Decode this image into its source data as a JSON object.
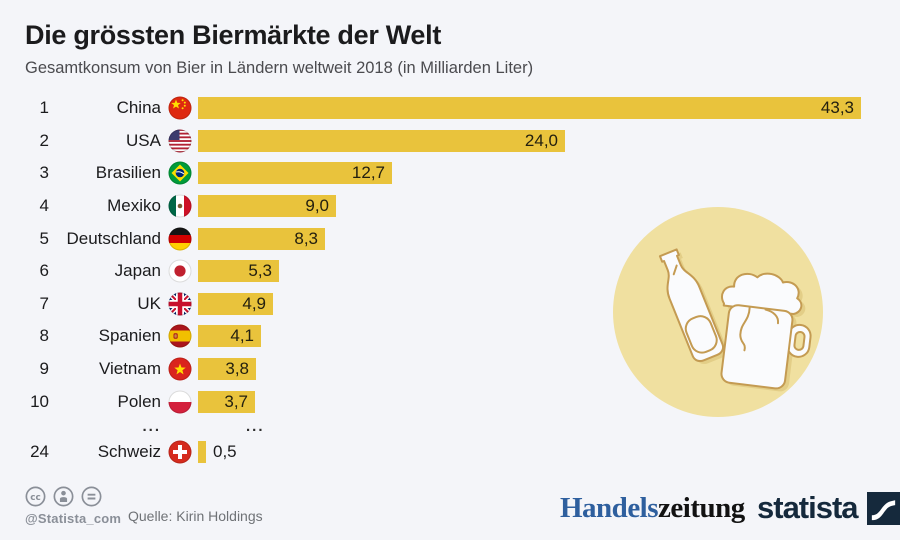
{
  "title": "Die grössten Biermärkte der Welt",
  "subtitle": "Gesamtkonsum von Bier in Ländern weltweit 2018 (in Milliarden Liter)",
  "colors": {
    "background": "#F4F5F9",
    "bar": "#E9C33C",
    "illustration_circle": "#F0E0A0",
    "illustration_outline": "#C49B52",
    "handelszeitung_blue": "#2E5F9E",
    "statista_navy": "#15293C"
  },
  "chart_data": {
    "type": "bar",
    "orientation": "horizontal",
    "title": "Die grössten Biermärkte der Welt",
    "subtitle": "Gesamtkonsum von Bier in Ländern weltweit 2018 (in Milliarden Liter)",
    "unit": "Milliarden Liter",
    "year": "2018",
    "max_value": 43.3,
    "value_format": "decimal-comma",
    "rows": [
      {
        "rank": "1",
        "country": "China",
        "flag": "cn",
        "value": 43.3,
        "label": "43,3"
      },
      {
        "rank": "2",
        "country": "USA",
        "flag": "us",
        "value": 24.0,
        "label": "24,0"
      },
      {
        "rank": "3",
        "country": "Brasilien",
        "flag": "br",
        "value": 12.7,
        "label": "12,7"
      },
      {
        "rank": "4",
        "country": "Mexiko",
        "flag": "mx",
        "value": 9.0,
        "label": "9,0"
      },
      {
        "rank": "5",
        "country": "Deutschland",
        "flag": "de",
        "value": 8.3,
        "label": "8,3"
      },
      {
        "rank": "6",
        "country": "Japan",
        "flag": "jp",
        "value": 5.3,
        "label": "5,3"
      },
      {
        "rank": "7",
        "country": "UK",
        "flag": "gb",
        "value": 4.9,
        "label": "4,9"
      },
      {
        "rank": "8",
        "country": "Spanien",
        "flag": "es",
        "value": 4.1,
        "label": "4,1"
      },
      {
        "rank": "9",
        "country": "Vietnam",
        "flag": "vn",
        "value": 3.8,
        "label": "3,8"
      },
      {
        "rank": "10",
        "country": "Polen",
        "flag": "pl",
        "value": 3.7,
        "label": "3,7"
      },
      {
        "rank": "24",
        "country": "Schweiz",
        "flag": "ch",
        "value": 0.5,
        "label": "0,5",
        "label_outside": true
      }
    ],
    "gap": {
      "after_rank": "10",
      "dots_left": "...",
      "dots_right": "..."
    }
  },
  "footer": {
    "cc_handle": "@Statista_com",
    "source": "Quelle: Kirin Holdings",
    "brand_left_1": "Handels",
    "brand_left_2": "zeitung",
    "brand_right": "statista"
  }
}
